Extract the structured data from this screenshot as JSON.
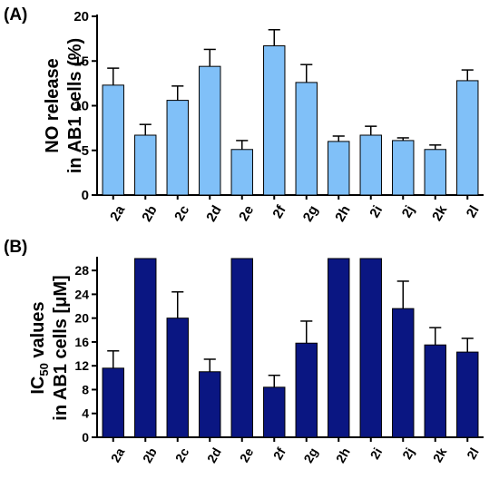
{
  "chart_data": [
    {
      "type": "bar",
      "panel_label": "(A)",
      "ylabel": [
        "NO release",
        "in AB1 cells (%)"
      ],
      "xlabel": "",
      "categories": [
        "2a",
        "2b",
        "2c",
        "2d",
        "2e",
        "2f",
        "2g",
        "2h",
        "2i",
        "2j",
        "2k",
        "2l"
      ],
      "values": [
        12.3,
        6.7,
        10.6,
        14.4,
        5.1,
        16.7,
        12.6,
        6.0,
        6.7,
        6.1,
        5.1,
        12.8
      ],
      "error": [
        1.9,
        1.2,
        1.6,
        1.9,
        1.0,
        1.8,
        2.0,
        0.6,
        1.0,
        0.3,
        0.5,
        1.2
      ],
      "ylim": [
        0,
        20
      ],
      "yticks": [
        "0",
        "5",
        "10",
        "15",
        "20"
      ],
      "bar_color": "#80c0f8",
      "grid": false
    },
    {
      "type": "bar",
      "panel_label": "(B)",
      "ylabel": [
        "IC",
        "50",
        " values",
        "in AB1 cells [μM]"
      ],
      "xlabel": "",
      "categories": [
        "2a",
        "2b",
        "2c",
        "2d",
        "2e",
        "2f",
        "2g",
        "2h",
        "2i",
        "2j",
        "2k",
        "2l"
      ],
      "values": [
        11.6,
        30,
        20.0,
        11.0,
        30,
        8.4,
        15.8,
        30,
        30,
        21.6,
        15.5,
        14.3
      ],
      "error": [
        2.9,
        0,
        4.4,
        2.1,
        0,
        2.0,
        3.7,
        0,
        0,
        4.6,
        2.9,
        2.3
      ],
      "ylim": [
        0,
        30
      ],
      "yticks": [
        "0",
        "4",
        "8",
        "12",
        "16",
        "20",
        "24",
        "28"
      ],
      "bar_color": "#0a1682",
      "grid": false
    }
  ]
}
